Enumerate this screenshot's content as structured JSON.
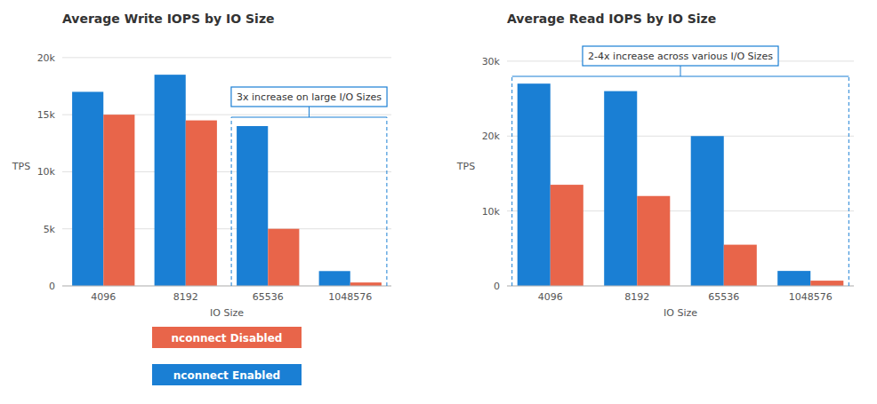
{
  "chart_data": [
    {
      "type": "bar",
      "title": "Average Write IOPS by IO Size",
      "categories": [
        "4096",
        "8192",
        "65536",
        "1048576"
      ],
      "series": [
        {
          "name": "nconnect Enabled",
          "color": "#1a7fd4",
          "values": [
            17000,
            18500,
            14000,
            1300
          ]
        },
        {
          "name": "nconnect Disabled",
          "color": "#e8654a",
          "values": [
            15000,
            14500,
            5000,
            300
          ]
        }
      ],
      "xlabel": "IO Size",
      "ylabel": "TPS",
      "ylim": [
        0,
        21000
      ],
      "yticks": [
        0,
        {
          "value": 5000,
          "label": "5k"
        },
        {
          "value": 10000,
          "label": "10k"
        },
        {
          "value": 15000,
          "label": "15k"
        },
        {
          "value": 20000,
          "label": "20k"
        }
      ],
      "grid": true,
      "legend": "bottom",
      "annotation": "3x increase on large I/O Sizes"
    },
    {
      "type": "bar",
      "title": "Average Read IOPS by IO Size",
      "categories": [
        "4096",
        "8192",
        "65536",
        "1048576"
      ],
      "series": [
        {
          "name": "nconnect Enabled",
          "color": "#1a7fd4",
          "values": [
            27000,
            26000,
            20000,
            2000
          ]
        },
        {
          "name": "nconnect Disabled",
          "color": "#e8654a",
          "values": [
            13500,
            12000,
            5500,
            700
          ]
        }
      ],
      "xlabel": "IO Size",
      "ylabel": "TPS",
      "ylim": [
        0,
        32000
      ],
      "yticks": [
        0,
        {
          "value": 10000,
          "label": "10k"
        },
        {
          "value": 20000,
          "label": "20k"
        },
        {
          "value": 30000,
          "label": "30k"
        }
      ],
      "grid": true,
      "annotation": "2-4x increase across various I/O Sizes"
    }
  ]
}
